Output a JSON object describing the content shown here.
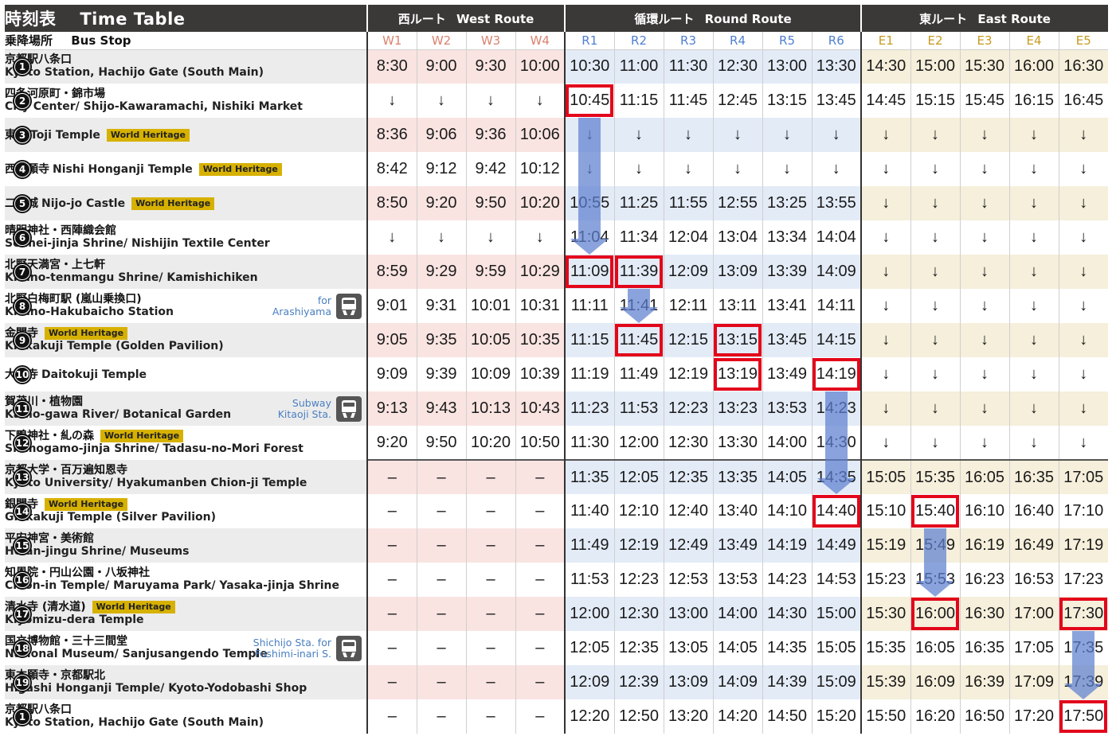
{
  "header": {
    "title_jp": "時刻表",
    "title_en": "Time Table",
    "routes": [
      {
        "jp": "西ルート",
        "en": "West Route",
        "key": "w"
      },
      {
        "jp": "循環ルート",
        "en": "Round Route",
        "key": "r"
      },
      {
        "jp": "東ルート",
        "en": "East Route",
        "key": "e"
      }
    ],
    "stop_header_jp": "乗降場所",
    "stop_header_en": "Bus Stop",
    "columns": [
      "W1",
      "W2",
      "W3",
      "W4",
      "R1",
      "R2",
      "R3",
      "R4",
      "R5",
      "R6",
      "E1",
      "E2",
      "E3",
      "E4",
      "E5"
    ]
  },
  "badge_text": "World Heritage",
  "stops": [
    {
      "num": "1",
      "jp": "京都駅八条口",
      "en": "Kyoto Station, Hachijo Gate (South Main)",
      "times": [
        "8:30",
        "9:00",
        "9:30",
        "10:00",
        "10:30",
        "11:00",
        "11:30",
        "12:30",
        "13:00",
        "13:30",
        "14:30",
        "15:00",
        "15:30",
        "16:00",
        "16:30"
      ]
    },
    {
      "num": "2",
      "jp": "四条河原町・錦市場",
      "en": "City Center/ Shijo-Kawaramachi, Nishiki Market",
      "times": [
        "↓",
        "↓",
        "↓",
        "↓",
        "10:45",
        "11:15",
        "11:45",
        "12:45",
        "13:15",
        "13:45",
        "14:45",
        "15:15",
        "15:45",
        "16:15",
        "16:45"
      ]
    },
    {
      "num": "3",
      "jp": "東寺",
      "en": "Toji Temple",
      "badge": true,
      "times": [
        "8:36",
        "9:06",
        "9:36",
        "10:06",
        "↓",
        "↓",
        "↓",
        "↓",
        "↓",
        "↓",
        "↓",
        "↓",
        "↓",
        "↓",
        "↓"
      ]
    },
    {
      "num": "4",
      "jp": "西本願寺",
      "en": "Nishi Honganji Temple",
      "badge": true,
      "times": [
        "8:42",
        "9:12",
        "9:42",
        "10:12",
        "↓",
        "↓",
        "↓",
        "↓",
        "↓",
        "↓",
        "↓",
        "↓",
        "↓",
        "↓",
        "↓"
      ]
    },
    {
      "num": "5",
      "jp": "二条城",
      "en": "Nijo-jo Castle",
      "badge": true,
      "times": [
        "8:50",
        "9:20",
        "9:50",
        "10:20",
        "10:55",
        "11:25",
        "11:55",
        "12:55",
        "13:25",
        "13:55",
        "↓",
        "↓",
        "↓",
        "↓",
        "↓"
      ]
    },
    {
      "num": "6",
      "jp": "晴明神社・西陣織会館",
      "en": "Seimei-jinja Shrine/ Nishijin Textile Center",
      "times": [
        "↓",
        "↓",
        "↓",
        "↓",
        "11:04",
        "11:34",
        "12:04",
        "13:04",
        "13:34",
        "14:04",
        "↓",
        "↓",
        "↓",
        "↓",
        "↓"
      ]
    },
    {
      "num": "7",
      "jp": "北野天満宮・上七軒",
      "en": "Kitano-tenmangu Shrine/ Kamishichiken",
      "times": [
        "8:59",
        "9:29",
        "9:59",
        "10:29",
        "11:09",
        "11:39",
        "12:09",
        "13:09",
        "13:39",
        "14:09",
        "↓",
        "↓",
        "↓",
        "↓",
        "↓"
      ]
    },
    {
      "num": "8",
      "jp": "北野白梅町駅 (嵐山乗換口)",
      "en": "Kitano-Hakubaicho Station",
      "transfer": [
        "for",
        "Arashiyama"
      ],
      "times": [
        "9:01",
        "9:31",
        "10:01",
        "10:31",
        "11:11",
        "11:41",
        "12:11",
        "13:11",
        "13:41",
        "14:11",
        "↓",
        "↓",
        "↓",
        "↓",
        "↓"
      ]
    },
    {
      "num": "9",
      "jp": "金閣寺",
      "en": "Kinkakuji Temple (Golden Pavilion)",
      "badge": true,
      "times": [
        "9:05",
        "9:35",
        "10:05",
        "10:35",
        "11:15",
        "11:45",
        "12:15",
        "13:15",
        "13:45",
        "14:15",
        "↓",
        "↓",
        "↓",
        "↓",
        "↓"
      ]
    },
    {
      "num": "10",
      "jp": "大徳寺",
      "en": "Daitokuji Temple",
      "times": [
        "9:09",
        "9:39",
        "10:09",
        "10:39",
        "11:19",
        "11:49",
        "12:19",
        "13:19",
        "13:49",
        "14:19",
        "↓",
        "↓",
        "↓",
        "↓",
        "↓"
      ]
    },
    {
      "num": "11",
      "jp": "賀茂川・植物園",
      "en": "Kamo-gawa River/ Botanical Garden",
      "transfer": [
        "Subway",
        "Kitaoji Sta."
      ],
      "times": [
        "9:13",
        "9:43",
        "10:13",
        "10:43",
        "11:23",
        "11:53",
        "12:23",
        "13:23",
        "13:53",
        "14:23",
        "↓",
        "↓",
        "↓",
        "↓",
        "↓"
      ]
    },
    {
      "num": "12",
      "jp": "下鴨神社・糺の森",
      "en": "Shimogamo-jinja Shrine/ Tadasu-no-Mori Forest",
      "badge": true,
      "times": [
        "9:20",
        "9:50",
        "10:20",
        "10:50",
        "11:30",
        "12:00",
        "12:30",
        "13:30",
        "14:00",
        "14:30",
        "↓",
        "↓",
        "↓",
        "↓",
        "↓"
      ]
    },
    {
      "num": "13",
      "jp": "京都大学・百万遍知恩寺",
      "en": "Kyoto University/ Hyakumanben Chion-ji Temple",
      "times": [
        "–",
        "–",
        "–",
        "–",
        "11:35",
        "12:05",
        "12:35",
        "13:35",
        "14:05",
        "14:35",
        "15:05",
        "15:35",
        "16:05",
        "16:35",
        "17:05"
      ]
    },
    {
      "num": "14",
      "jp": "銀閣寺",
      "en": "Ginkakuji Temple (Silver Pavilion)",
      "badge": true,
      "times": [
        "–",
        "–",
        "–",
        "–",
        "11:40",
        "12:10",
        "12:40",
        "13:40",
        "14:10",
        "14:40",
        "15:10",
        "15:40",
        "16:10",
        "16:40",
        "17:10"
      ]
    },
    {
      "num": "15",
      "jp": "平安神宮・美術館",
      "en": "Heian-jingu Shrine/ Museums",
      "times": [
        "–",
        "–",
        "–",
        "–",
        "11:49",
        "12:19",
        "12:49",
        "13:49",
        "14:19",
        "14:49",
        "15:19",
        "15:49",
        "16:19",
        "16:49",
        "17:19"
      ]
    },
    {
      "num": "16",
      "jp": "知恩院・円山公園・八坂神社",
      "en": "Chion-in Temple/ Maruyama Park/ Yasaka-jinja Shrine",
      "times": [
        "–",
        "–",
        "–",
        "–",
        "11:53",
        "12:23",
        "12:53",
        "13:53",
        "14:23",
        "14:53",
        "15:23",
        "15:53",
        "16:23",
        "16:53",
        "17:23"
      ]
    },
    {
      "num": "17",
      "jp": "清水寺 (清水道)",
      "en": "Kiyomizu-dera Temple",
      "badge": true,
      "times": [
        "–",
        "–",
        "–",
        "–",
        "12:00",
        "12:30",
        "13:00",
        "14:00",
        "14:30",
        "15:00",
        "15:30",
        "16:00",
        "16:30",
        "17:00",
        "17:30"
      ]
    },
    {
      "num": "18",
      "jp": "国立博物館・三十三間堂",
      "en": "National Museum/ Sanjusangendo Temple",
      "transfer": [
        "Shichijo Sta. for",
        "Fushimi-inari S."
      ],
      "times": [
        "–",
        "–",
        "–",
        "–",
        "12:05",
        "12:35",
        "13:05",
        "14:05",
        "14:35",
        "15:05",
        "15:35",
        "16:05",
        "16:35",
        "17:05",
        "17:35"
      ]
    },
    {
      "num": "19",
      "jp": "東本願寺・京都駅北",
      "en": "Higashi Honganji Temple/ Kyoto-Yodobashi Shop",
      "times": [
        "–",
        "–",
        "–",
        "–",
        "12:09",
        "12:39",
        "13:09",
        "14:09",
        "14:39",
        "15:09",
        "15:39",
        "16:09",
        "16:39",
        "17:09",
        "17:39"
      ]
    },
    {
      "num": "1",
      "jp": "京都駅八条口",
      "en": "Kyoto Station, Hachijo Gate (South Main)",
      "times": [
        "–",
        "–",
        "–",
        "–",
        "12:20",
        "12:50",
        "13:20",
        "14:20",
        "14:50",
        "15:20",
        "15:50",
        "16:20",
        "16:50",
        "17:20",
        "17:50"
      ]
    }
  ],
  "highlights": [
    {
      "row": 1,
      "col": 4
    },
    {
      "row": 6,
      "col": 4
    },
    {
      "row": 6,
      "col": 5
    },
    {
      "row": 8,
      "col": 5
    },
    {
      "row": 8,
      "col": 7
    },
    {
      "row": 9,
      "col": 7
    },
    {
      "row": 9,
      "col": 9
    },
    {
      "row": 13,
      "col": 9
    },
    {
      "row": 13,
      "col": 11
    },
    {
      "row": 16,
      "col": 11
    },
    {
      "row": 16,
      "col": 14
    },
    {
      "row": 19,
      "col": 14
    }
  ],
  "arrows": [
    {
      "col": 4,
      "from_row": 1,
      "to_row": 6
    },
    {
      "col": 5,
      "from_row": 6,
      "to_row": 8
    },
    {
      "col": 9,
      "from_row": 9,
      "to_row": 13
    },
    {
      "col": 11,
      "from_row": 13,
      "to_row": 16
    },
    {
      "col": 14,
      "from_row": 16,
      "to_row": 19
    }
  ],
  "colors": {
    "header_bg": "#3b3838",
    "west": "#f0a39c",
    "round": "#8ab4f0",
    "east": "#f0c75e",
    "highlight": "#e3061b",
    "arrow": "#5e80d0",
    "badge": "#d7b100"
  }
}
